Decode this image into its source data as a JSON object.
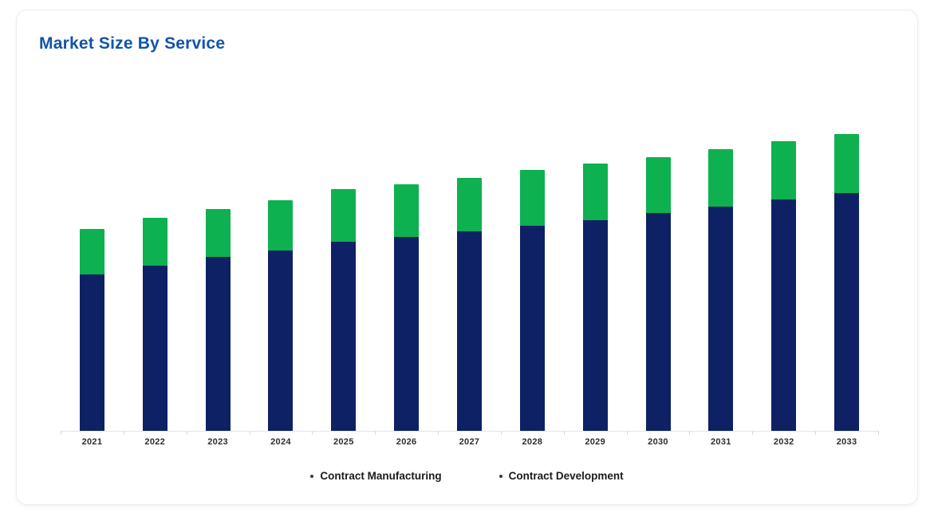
{
  "card": {
    "title": "Market Size By Service"
  },
  "colors": {
    "title_text": "#1254a8",
    "contract_manufacturing": "#0d2164",
    "contract_development": "#0db14f",
    "axis_line": "#e4e4e4",
    "axis_tick": "#d9d9d9",
    "x_label_text": "#2d2d2d",
    "legend_text": "#1b1b1b",
    "legend_marker": "#3b3b3b",
    "card_border": "#ececec"
  },
  "chart_data": {
    "type": "bar",
    "stacked": true,
    "title": "Market Size By Service",
    "categories": [
      "2021",
      "2022",
      "2023",
      "2024",
      "2025",
      "2026",
      "2027",
      "2028",
      "2029",
      "2030",
      "2031",
      "2032",
      "2033"
    ],
    "series": [
      {
        "name": "Contract Manufacturing",
        "color": "#0d2164",
        "values": [
          52.7,
          55.6,
          58.6,
          60.8,
          63.7,
          65.3,
          67.2,
          69.1,
          71.0,
          73.4,
          75.5,
          78.0,
          80.1
        ]
      },
      {
        "name": "Contract Development",
        "color": "#0db14f",
        "values": [
          15.3,
          16.1,
          16.1,
          16.9,
          17.7,
          17.7,
          18.0,
          18.8,
          19.1,
          18.8,
          19.4,
          19.6,
          19.9
        ]
      }
    ],
    "units": "relative (no y-axis shown; values estimated from bar heights, max stack = 100)",
    "ylim": [
      0,
      100
    ],
    "grid": false,
    "y_axis_visible": false,
    "legend_position": "bottom",
    "xlabel": "",
    "ylabel": ""
  }
}
